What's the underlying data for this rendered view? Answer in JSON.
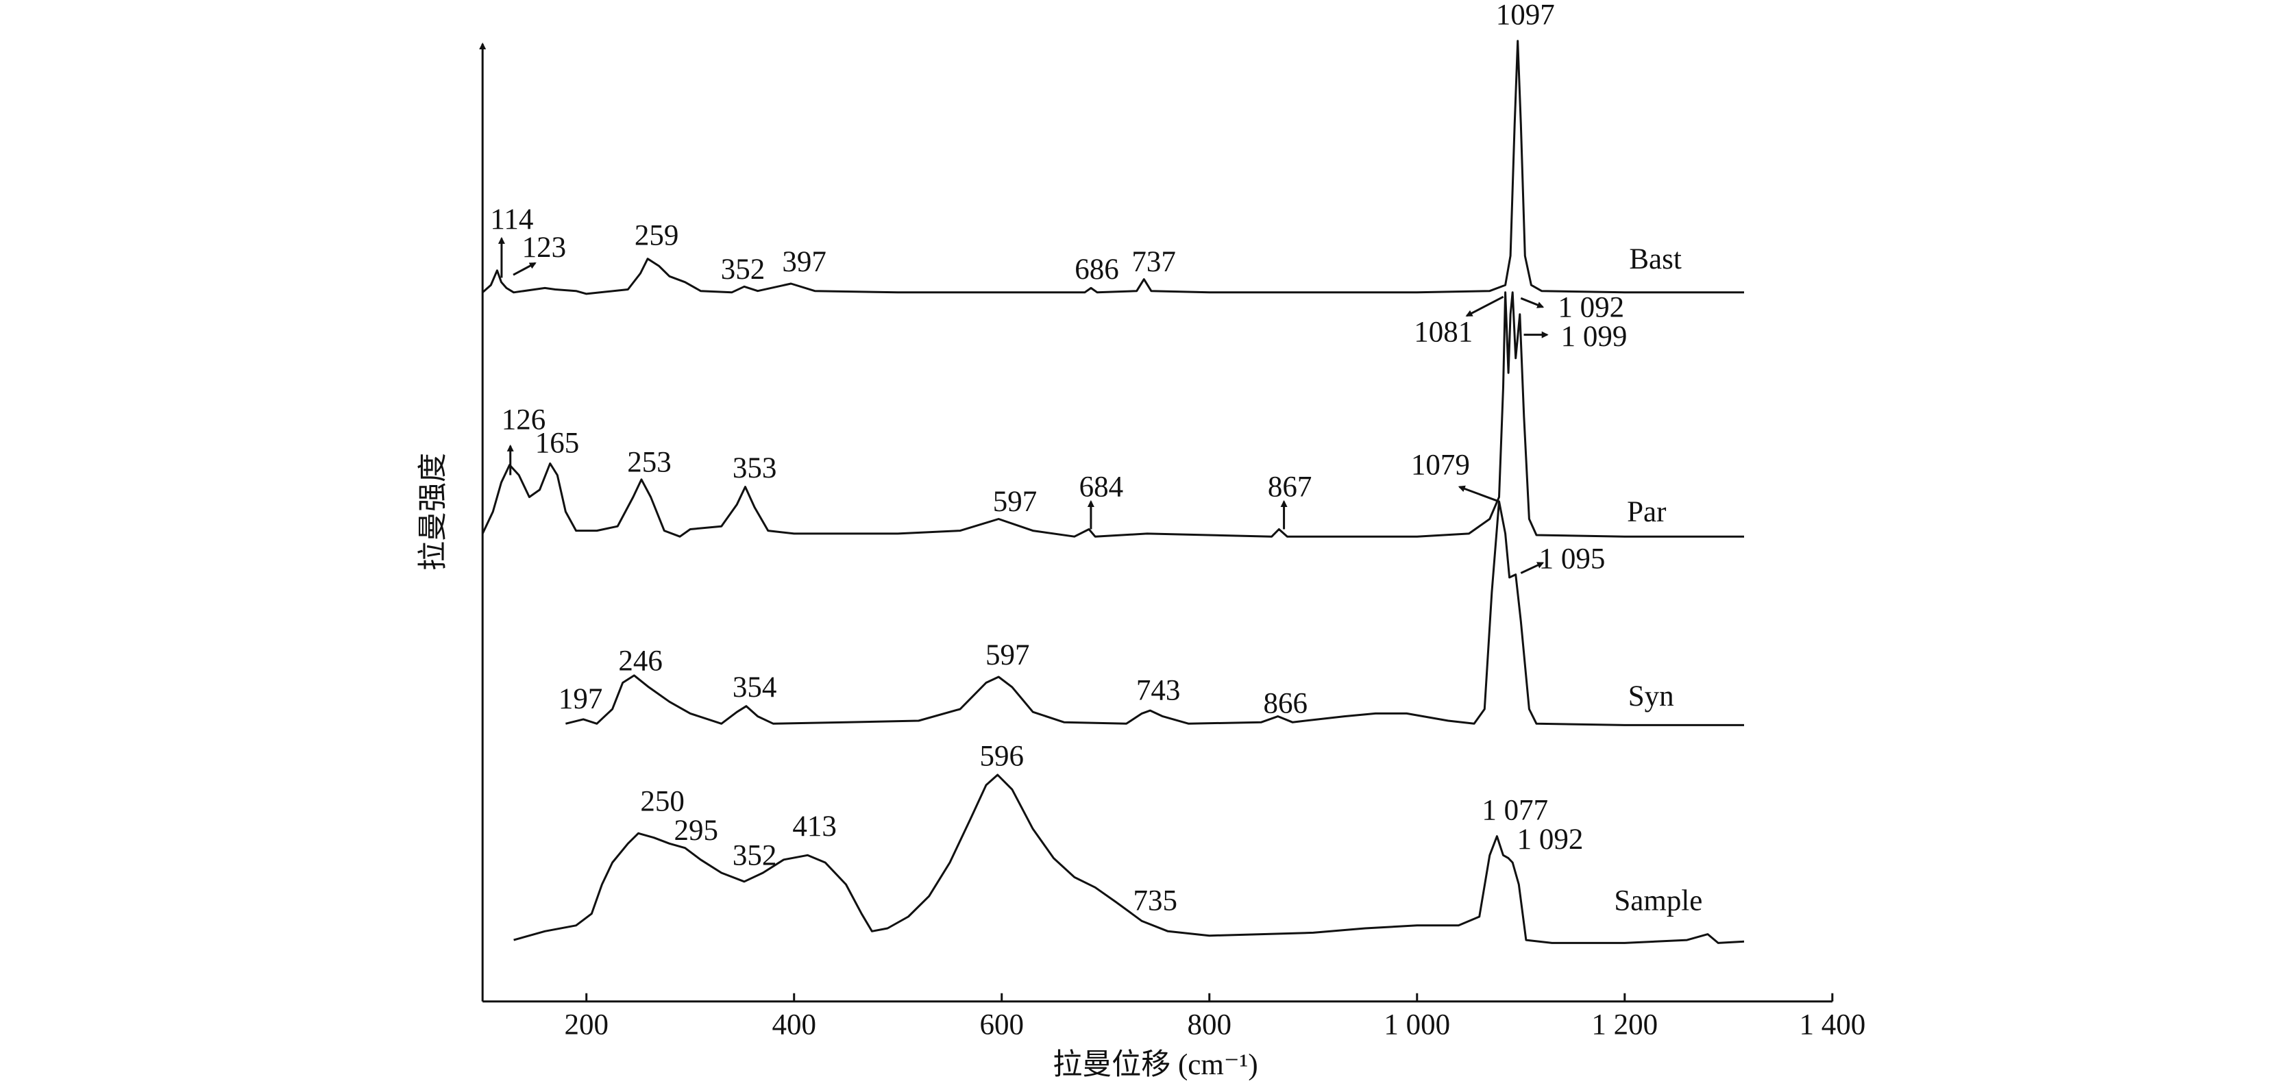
{
  "chart_data": {
    "type": "line",
    "x_label": "拉曼位移 (cm⁻¹)",
    "y_label": "拉曼强度",
    "xlim": [
      100,
      1400
    ],
    "ylim": [
      0,
      670
    ],
    "xticks": [
      200,
      400,
      600,
      800,
      {
        "value": 1000,
        "label": "1 000"
      },
      {
        "value": 1200,
        "label": "1 200"
      },
      {
        "value": 1400,
        "label": "1 400"
      }
    ],
    "color": "#111111",
    "series": [
      {
        "name": "Bast",
        "x": [
          100,
          108,
          114,
          118,
          123,
          130,
          160,
          170,
          190,
          200,
          240,
          252,
          259,
          270,
          280,
          295,
          310,
          340,
          352,
          365,
          397,
          420,
          500,
          680,
          686,
          692,
          730,
          737,
          744,
          800,
          1000,
          1070,
          1085,
          1090,
          1094,
          1097,
          1100,
          1104,
          1110,
          1120,
          1200,
          1315
        ],
        "values": [
          485,
          490,
          500,
          492,
          488,
          485,
          488,
          487,
          486,
          484,
          487,
          498,
          508,
          503,
          496,
          492,
          486,
          485,
          489,
          486,
          491,
          486,
          485,
          485,
          488,
          485,
          486,
          494,
          486,
          485,
          485,
          486,
          490,
          510,
          600,
          657,
          600,
          510,
          490,
          486,
          485,
          485
        ]
      },
      {
        "name": "Par",
        "x": [
          100,
          110,
          118,
          126,
          135,
          145,
          155,
          165,
          172,
          180,
          190,
          210,
          230,
          245,
          253,
          262,
          275,
          290,
          300,
          330,
          345,
          353,
          362,
          375,
          400,
          500,
          560,
          597,
          630,
          670,
          684,
          690,
          740,
          860,
          867,
          875,
          1000,
          1050,
          1070,
          1079,
          1083,
          1085,
          1088,
          1090,
          1092,
          1095,
          1099,
          1103,
          1108,
          1115,
          1200,
          1315
        ],
        "values": [
          320,
          335,
          355,
          367,
          360,
          345,
          350,
          368,
          360,
          335,
          322,
          322,
          325,
          345,
          357,
          345,
          322,
          318,
          323,
          325,
          340,
          352,
          338,
          322,
          320,
          320,
          322,
          330,
          322,
          318,
          323,
          318,
          320,
          318,
          323,
          318,
          318,
          320,
          330,
          345,
          420,
          485,
          430,
          470,
          485,
          440,
          470,
          400,
          330,
          319,
          318,
          318
        ]
      },
      {
        "name": "Syn",
        "x": [
          180,
          197,
          210,
          225,
          235,
          246,
          260,
          280,
          300,
          330,
          345,
          354,
          365,
          380,
          450,
          520,
          560,
          585,
          597,
          610,
          630,
          660,
          720,
          735,
          743,
          755,
          780,
          850,
          866,
          880,
          930,
          960,
          990,
          1030,
          1055,
          1065,
          1072,
          1079,
          1085,
          1089,
          1095,
          1100,
          1108,
          1115,
          1200,
          1315
        ],
        "values": [
          190,
          193,
          190,
          200,
          218,
          223,
          215,
          205,
          197,
          190,
          198,
          202,
          195,
          190,
          191,
          192,
          200,
          218,
          222,
          215,
          198,
          191,
          190,
          197,
          199,
          195,
          190,
          191,
          195,
          191,
          195,
          197,
          197,
          192,
          190,
          200,
          280,
          342,
          320,
          290,
          292,
          260,
          200,
          190,
          189,
          189
        ]
      },
      {
        "name": "Sample",
        "x": [
          130,
          160,
          190,
          205,
          215,
          225,
          240,
          250,
          265,
          280,
          295,
          310,
          330,
          352,
          370,
          390,
          413,
          430,
          450,
          465,
          475,
          490,
          510,
          530,
          550,
          570,
          585,
          596,
          610,
          630,
          650,
          670,
          690,
          710,
          735,
          760,
          800,
          850,
          900,
          950,
          1000,
          1040,
          1060,
          1070,
          1077,
          1083,
          1088,
          1092,
          1098,
          1105,
          1130,
          1200,
          1260,
          1280,
          1290,
          1315
        ],
        "values": [
          42,
          48,
          52,
          60,
          80,
          95,
          108,
          115,
          112,
          108,
          105,
          97,
          88,
          82,
          88,
          97,
          100,
          95,
          80,
          60,
          48,
          50,
          58,
          72,
          95,
          125,
          148,
          155,
          145,
          118,
          98,
          85,
          78,
          68,
          55,
          48,
          45,
          46,
          47,
          50,
          52,
          52,
          58,
          100,
          113,
          100,
          98,
          95,
          80,
          42,
          40,
          40,
          42,
          46,
          40,
          41
        ]
      }
    ],
    "annotations": [
      "1097",
      "114",
      "123",
      "259",
      "352",
      "397",
      "686",
      "737",
      "1081",
      "1 092",
      "1 099",
      "126",
      "165",
      "253",
      "353",
      "597",
      "684",
      "867",
      "1079",
      "1 095",
      "197",
      "246",
      "354",
      "597",
      "743",
      "866",
      "596",
      "250",
      "295",
      "352",
      "413",
      "735",
      "1 077",
      "1 092"
    ]
  }
}
